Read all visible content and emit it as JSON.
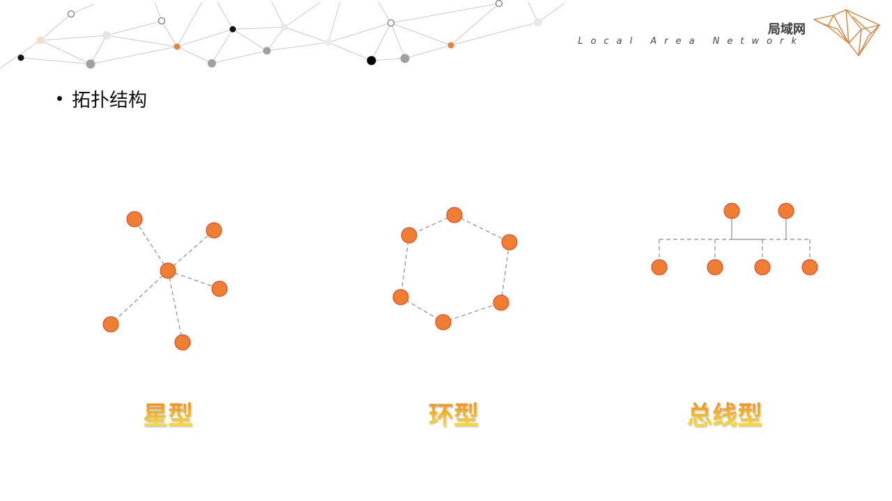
{
  "header": {
    "title": "局域网",
    "subtitle": "Local Area Network"
  },
  "content": {
    "bullet": "拓扑结构"
  },
  "topologies": [
    {
      "id": "star",
      "label": "星型"
    },
    {
      "id": "ring",
      "label": "环型"
    },
    {
      "id": "bus",
      "label": "总线型"
    }
  ],
  "colors": {
    "node_fill": "#ef7d32",
    "node_stroke": "#e03a1a",
    "link": "#8a8a8a",
    "logo": "#d9803a",
    "bg_line": "#c8c8c8"
  },
  "icons": {
    "logo": "polygon-fox-logo",
    "background": "network-mesh-decoration"
  }
}
